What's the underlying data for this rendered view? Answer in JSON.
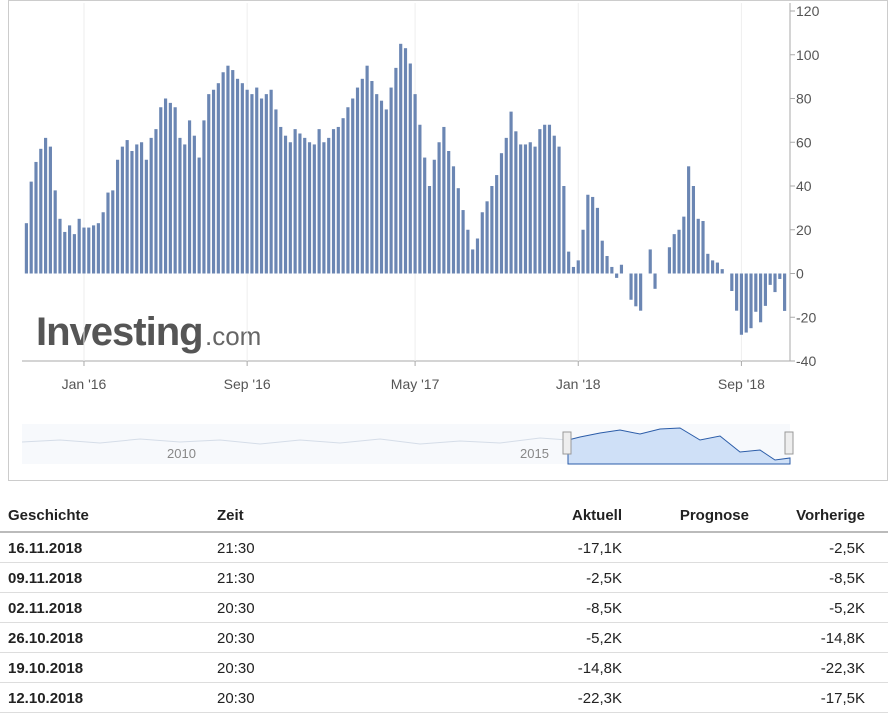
{
  "chart_data": {
    "type": "bar",
    "color": "#6b86b3",
    "logo": [
      "Investing",
      ".com"
    ],
    "navigator_labels": [
      "2010",
      "2015"
    ],
    "categories": [
      null,
      null,
      null,
      null,
      null,
      null,
      null,
      null,
      null,
      null,
      null,
      null,
      "Jan '16",
      null,
      null,
      null,
      null,
      null,
      null,
      null,
      null,
      null,
      null,
      null,
      null,
      null,
      null,
      null,
      null,
      null,
      null,
      null,
      null,
      null,
      null,
      null,
      null,
      null,
      null,
      null,
      null,
      null,
      null,
      null,
      null,
      null,
      "Sep '16",
      null,
      null,
      null,
      null,
      null,
      null,
      null,
      null,
      null,
      null,
      null,
      null,
      null,
      null,
      null,
      null,
      null,
      null,
      null,
      null,
      null,
      null,
      null,
      null,
      null,
      null,
      null,
      null,
      null,
      null,
      null,
      null,
      null,
      null,
      "May '17",
      null,
      null,
      null,
      null,
      null,
      null,
      null,
      null,
      null,
      null,
      null,
      null,
      null,
      null,
      null,
      null,
      null,
      null,
      null,
      null,
      null,
      null,
      null,
      null,
      null,
      null,
      null,
      null,
      null,
      null,
      null,
      null,
      null,
      "Jan '18",
      null,
      null,
      null,
      null,
      null,
      null,
      null,
      null,
      null,
      null,
      null,
      null,
      null,
      null,
      null,
      null,
      null,
      null,
      null,
      null,
      null,
      null,
      null,
      null,
      null,
      null,
      null,
      null,
      null,
      null,
      null,
      null,
      null,
      "Sep '18",
      null,
      null,
      null,
      null,
      null,
      null,
      null,
      null,
      null
    ],
    "values": [
      23,
      42,
      51,
      57,
      62,
      58,
      38,
      25,
      19,
      22,
      18,
      25,
      21,
      21,
      22,
      23,
      28,
      37,
      38,
      52,
      58,
      61,
      56,
      59,
      60,
      52,
      62,
      66,
      76,
      80,
      78,
      76,
      62,
      59,
      70,
      63,
      53,
      70,
      82,
      84,
      87,
      92,
      95,
      93,
      89,
      87,
      84,
      82,
      85,
      80,
      82,
      84,
      75,
      67,
      63,
      60,
      66,
      64,
      62,
      60,
      59,
      66,
      60,
      62,
      66,
      67,
      71,
      76,
      80,
      85,
      89,
      95,
      88,
      82,
      79,
      75,
      85,
      94,
      105,
      103,
      96,
      82,
      68,
      53,
      40,
      52,
      60,
      67,
      56,
      49,
      39,
      29,
      20,
      11,
      16,
      28,
      33,
      40,
      45,
      55,
      62,
      74,
      65,
      59,
      59,
      60,
      58,
      66,
      68,
      68,
      63,
      58,
      40,
      10,
      3,
      6,
      20,
      36,
      35,
      30,
      15,
      8,
      3,
      -2,
      4,
      0,
      -12,
      -15,
      -17,
      0,
      11,
      -7,
      0,
      0,
      12,
      18,
      20,
      26,
      49,
      40,
      25,
      24,
      9,
      6,
      5,
      2,
      0,
      -8,
      -17,
      -28,
      -27,
      -25,
      -17.5,
      -22.3,
      -14.8,
      -5.2,
      -8.5,
      -2.5,
      -17.1
    ],
    "ylim": [
      -40,
      120
    ],
    "yticks": [
      -40,
      -20,
      0,
      20,
      40,
      60,
      80,
      100,
      120
    ]
  },
  "table": {
    "headers": [
      "Geschichte",
      "Zeit",
      "Aktuell",
      "Prognose",
      "Vorherige"
    ],
    "rows": [
      [
        "16.11.2018",
        "21:30",
        "-17,1K",
        "",
        "-2,5K"
      ],
      [
        "09.11.2018",
        "21:30",
        "-2,5K",
        "",
        "-8,5K"
      ],
      [
        "02.11.2018",
        "20:30",
        "-8,5K",
        "",
        "-5,2K"
      ],
      [
        "26.10.2018",
        "20:30",
        "-5,2K",
        "",
        "-14,8K"
      ],
      [
        "19.10.2018",
        "20:30",
        "-14,8K",
        "",
        "-22,3K"
      ],
      [
        "12.10.2018",
        "20:30",
        "-22,3K",
        "",
        "-17,5K"
      ]
    ]
  }
}
